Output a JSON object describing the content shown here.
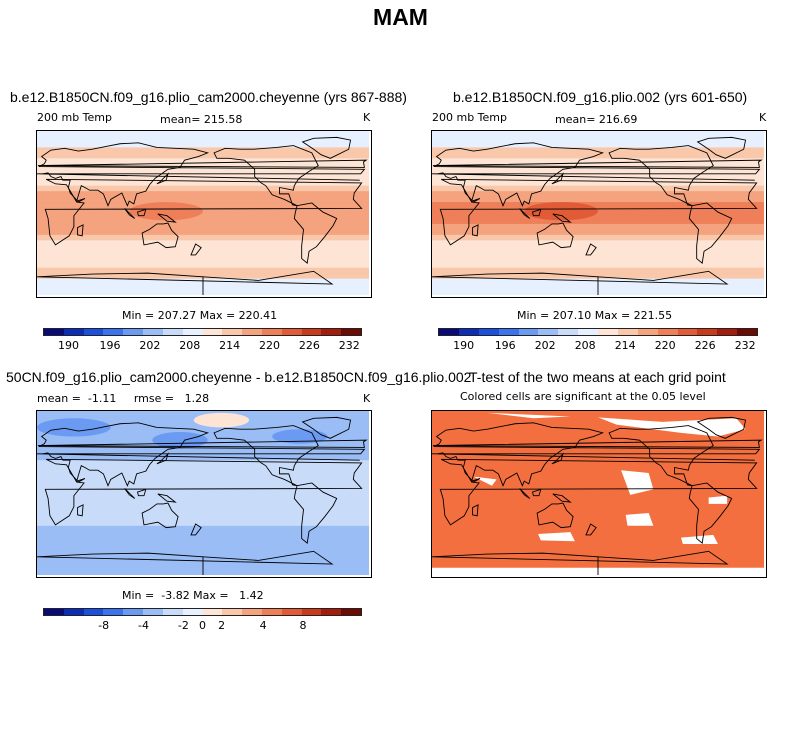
{
  "title": "MAM",
  "panels": {
    "p1": {
      "title": "b.e12.B1850CN.f09_g16.plio_cam2000.cheyenne (yrs 867-888)",
      "left_label": "200 mb Temp",
      "center_label": "mean= 215.58",
      "right_label": "K",
      "minmax": "Min = 207.27 Max = 220.41"
    },
    "p2": {
      "title": "b.e12.B1850CN.f09_g16.plio.002 (yrs 601-650)",
      "left_label": "200 mb Temp",
      "center_label": "mean= 216.69",
      "right_label": "K",
      "minmax": "Min = 207.10 Max = 221.55"
    },
    "p3": {
      "title": "50CN.f09_g16.plio_cam2000.cheyenne - b.e12.B1850CN.f09_g16.plio.002",
      "left_label": "mean =  -1.11     rmse =   1.28",
      "right_label": "K",
      "minmax": "Min =  -3.82 Max =   1.42"
    },
    "p4": {
      "title": "T-test of the two means at each grid point",
      "subtitle": "Colored cells are significant at the 0.05 level"
    }
  },
  "colorbars": {
    "colors": [
      "#0a0a78",
      "#0c2db4",
      "#1c4fdc",
      "#3b73ee",
      "#6b9af2",
      "#9bbdf6",
      "#c8dcfa",
      "#e6f0fe",
      "#fde4d4",
      "#f9c7aa",
      "#f4a37e",
      "#ee7f58",
      "#e15b36",
      "#c83a1c",
      "#a11e0e",
      "#6c0a04"
    ],
    "temp_ticks": [
      "190",
      "196",
      "202",
      "208",
      "214",
      "220",
      "226",
      "232"
    ],
    "diff_ticks": [
      "-8",
      "-4",
      "-2",
      "0",
      "2",
      "4",
      "8"
    ]
  },
  "colors": {
    "significant": "#f46f3f",
    "land_outline": "#000000"
  }
}
